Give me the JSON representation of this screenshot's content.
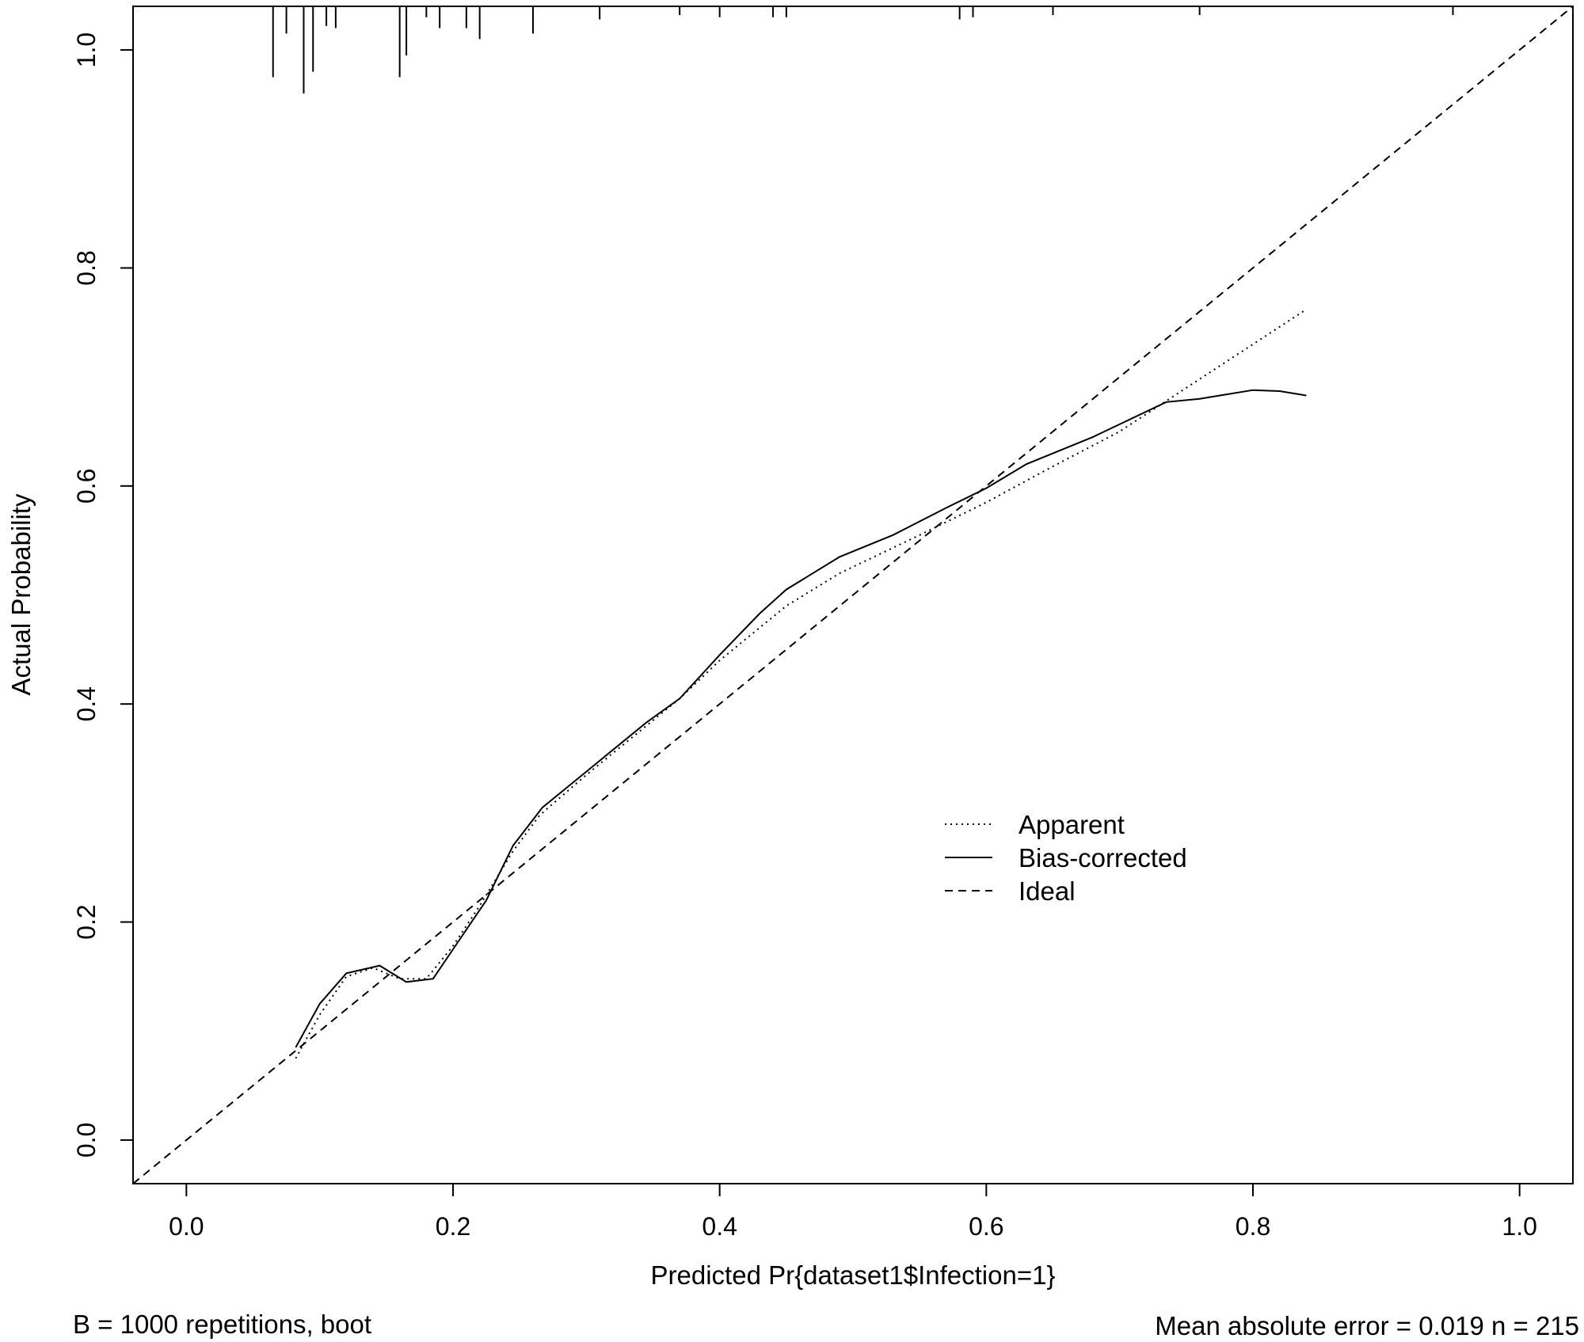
{
  "chart_data": {
    "type": "line",
    "title": "",
    "xlabel": "Predicted Pr{dataset1$Infection=1}",
    "ylabel": "Actual Probability",
    "xlim": [
      -0.04,
      1.04
    ],
    "ylim": [
      -0.04,
      1.04
    ],
    "x_ticks": [
      "0.0",
      "0.2",
      "0.4",
      "0.6",
      "0.8",
      "1.0"
    ],
    "y_ticks": [
      "0.0",
      "0.2",
      "0.4",
      "0.6",
      "0.8",
      "1.0"
    ],
    "grid": false,
    "legend_position": "center-right",
    "series": [
      {
        "name": "Apparent",
        "style": "dotted",
        "x": [
          0.082,
          0.1,
          0.12,
          0.14,
          0.16,
          0.18,
          0.2,
          0.22,
          0.245,
          0.265,
          0.3,
          0.34,
          0.37,
          0.4,
          0.45,
          0.49,
          0.55,
          0.6,
          0.65,
          0.7,
          0.75,
          0.8,
          0.84
        ],
        "y": [
          0.075,
          0.115,
          0.15,
          0.158,
          0.148,
          0.148,
          0.178,
          0.215,
          0.265,
          0.298,
          0.335,
          0.375,
          0.405,
          0.44,
          0.49,
          0.52,
          0.555,
          0.585,
          0.618,
          0.65,
          0.69,
          0.73,
          0.762
        ]
      },
      {
        "name": "Bias-corrected",
        "style": "solid",
        "x": [
          0.082,
          0.1,
          0.12,
          0.145,
          0.165,
          0.185,
          0.2,
          0.225,
          0.245,
          0.267,
          0.3,
          0.345,
          0.37,
          0.4,
          0.43,
          0.45,
          0.49,
          0.53,
          0.57,
          0.6,
          0.63,
          0.68,
          0.735,
          0.76,
          0.8,
          0.82,
          0.84
        ],
        "y": [
          0.085,
          0.125,
          0.153,
          0.16,
          0.145,
          0.148,
          0.175,
          0.22,
          0.27,
          0.305,
          0.338,
          0.383,
          0.405,
          0.445,
          0.483,
          0.505,
          0.535,
          0.555,
          0.58,
          0.598,
          0.62,
          0.645,
          0.677,
          0.68,
          0.688,
          0.687,
          0.683
        ]
      },
      {
        "name": "Ideal",
        "style": "dashed",
        "x": [
          -0.04,
          1.04
        ],
        "y": [
          -0.04,
          1.04
        ]
      }
    ],
    "rug": {
      "x": [
        0.065,
        0.075,
        0.088,
        0.095,
        0.105,
        0.112,
        0.16,
        0.165,
        0.18,
        0.19,
        0.21,
        0.22,
        0.26,
        0.31,
        0.37,
        0.4,
        0.44,
        0.45,
        0.58,
        0.59,
        0.65,
        0.76,
        0.95
      ],
      "len": [
        0.065,
        0.025,
        0.08,
        0.06,
        0.018,
        0.02,
        0.065,
        0.045,
        0.01,
        0.02,
        0.02,
        0.03,
        0.025,
        0.012,
        0.008,
        0.01,
        0.01,
        0.01,
        0.012,
        0.01,
        0.008,
        0.008,
        0.008
      ],
      "top_y": 1.04
    }
  },
  "footnote_left": "B = 1000 repetitions, boot",
  "footnote_right": "Mean absolute error = 0.019 n = 215"
}
